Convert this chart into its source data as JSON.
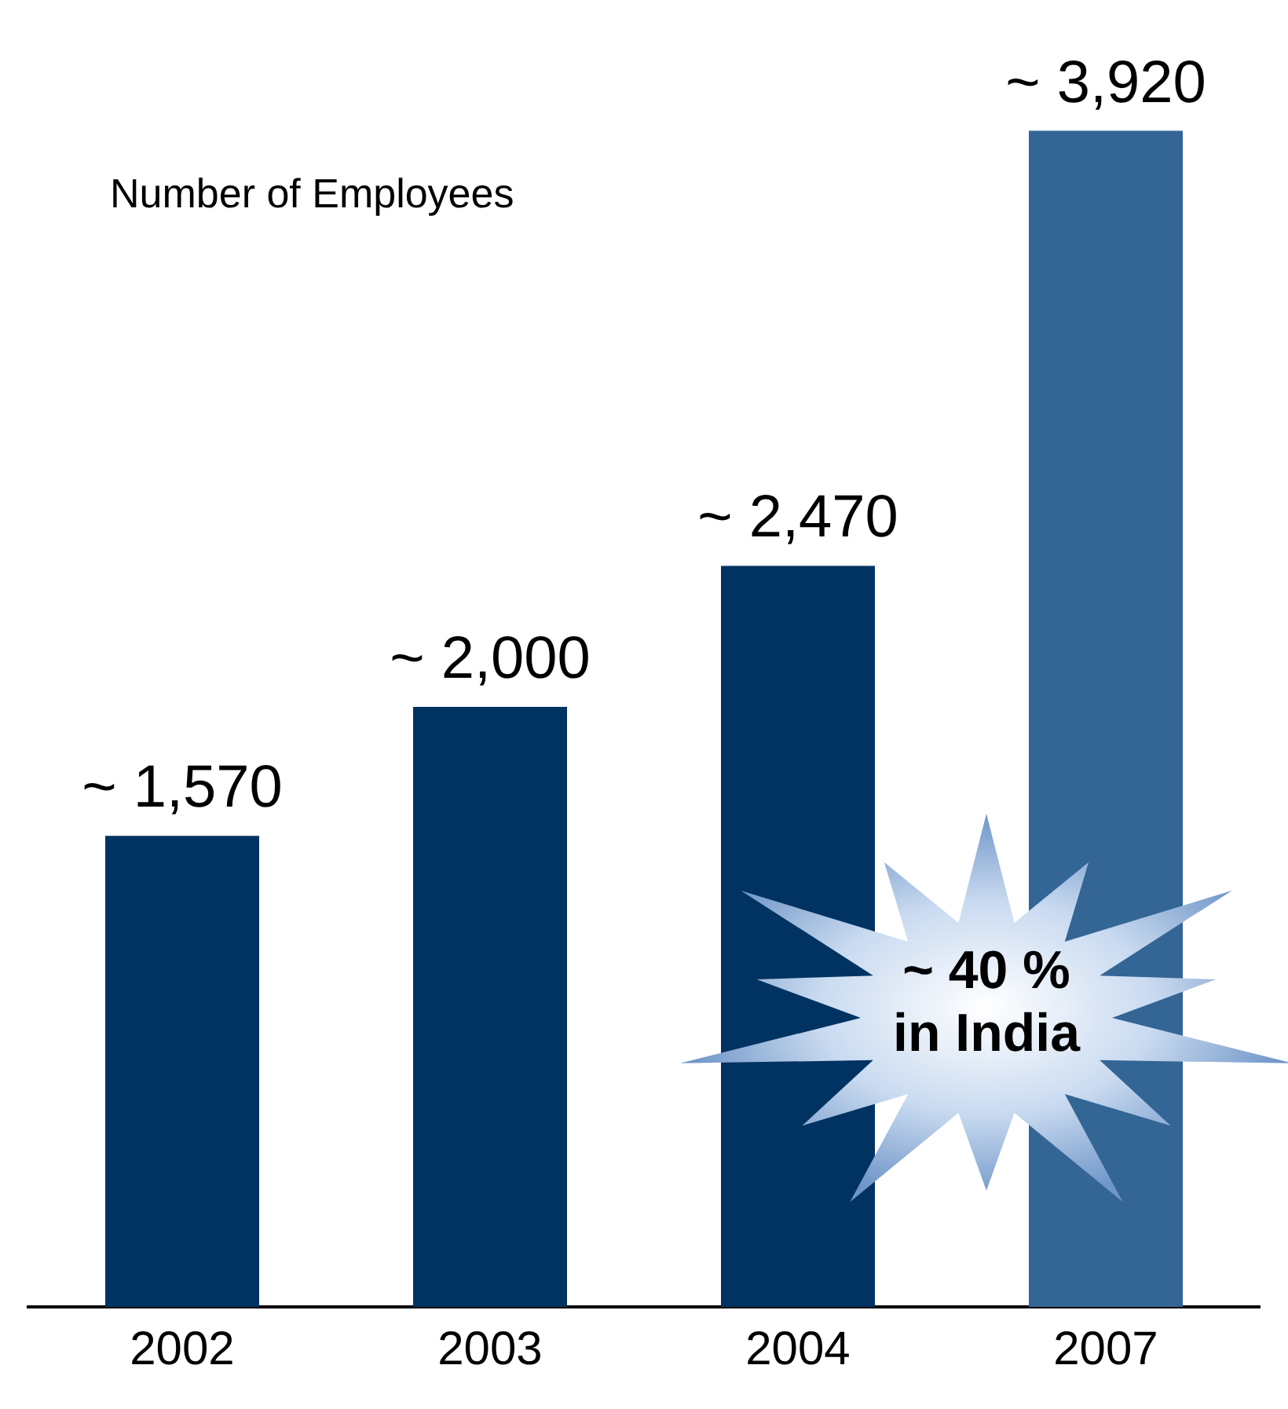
{
  "chart_data": {
    "type": "bar",
    "title": "Number of Employees",
    "categories": [
      "2002",
      "2003",
      "2004",
      "2007"
    ],
    "values": [
      1570,
      2000,
      2470,
      3920
    ],
    "colors": [
      "#003362",
      "#003362",
      "#003362",
      "#336595"
    ],
    "value_labels": [
      "~ 1,570",
      "~ 2,000",
      "~ 2,470",
      "~ 3,920"
    ],
    "annotations": [
      "~ 40 %\nin India"
    ],
    "tick_labels": "x",
    "grid": false,
    "legend": false
  }
}
